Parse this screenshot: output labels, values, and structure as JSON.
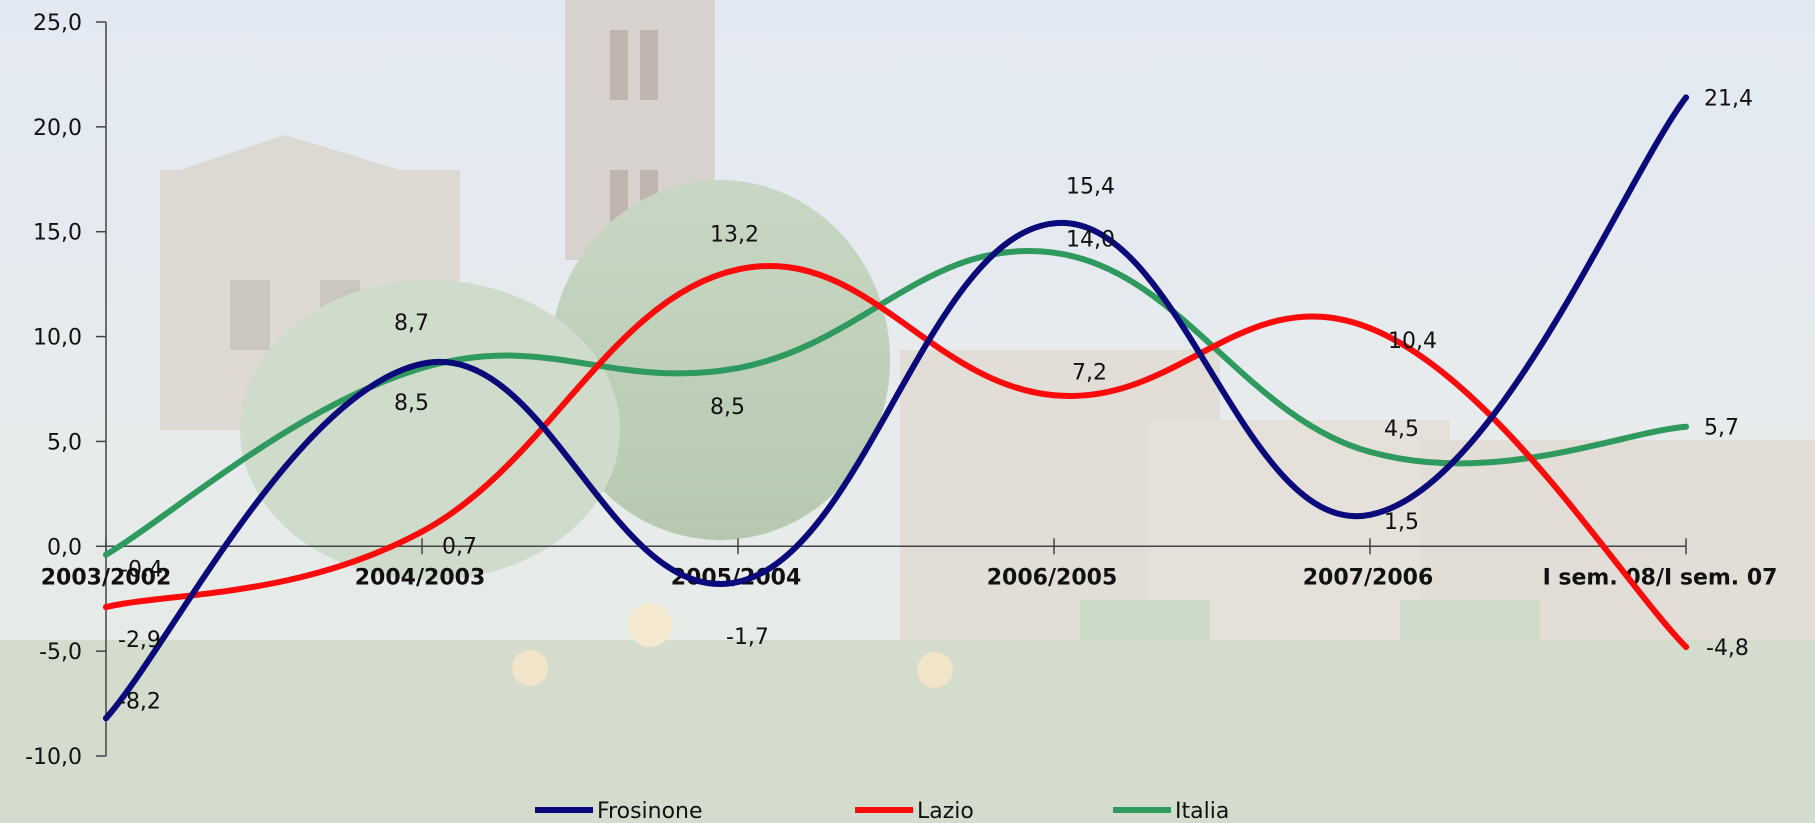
{
  "colors": {
    "Frosinone": "#0a0a7a",
    "Lazio": "#ff0a0a",
    "Italia": "#2e9a5e",
    "axis": "#444444"
  },
  "chart_data": {
    "type": "line",
    "title": "",
    "xlabel": "",
    "ylabel": "",
    "ylim": [
      -10,
      25
    ],
    "yticks": [
      "-10,0",
      "-5,0",
      "0,0",
      "5,0",
      "10,0",
      "15,0",
      "20,0",
      "25,0"
    ],
    "ytick_values": [
      -10,
      -5,
      0,
      5,
      10,
      15,
      20,
      25
    ],
    "categories": [
      "2003/2002",
      "2004/2003",
      "2005/2004",
      "2006/2005",
      "2007/2006",
      "I sem. 08/I sem. 07"
    ],
    "series": [
      {
        "name": "Frosinone",
        "values": [
          -8.2,
          8.7,
          -1.7,
          15.4,
          1.5,
          21.4
        ],
        "labels": [
          "-8,2",
          "8,7",
          "-1,7",
          "15,4",
          "1,5",
          "21,4"
        ]
      },
      {
        "name": "Lazio",
        "values": [
          -2.9,
          0.7,
          13.2,
          7.2,
          10.4,
          -4.8
        ],
        "labels": [
          "-2,9",
          "0,7",
          "13,2",
          "7,2",
          "10,4",
          "-4,8"
        ]
      },
      {
        "name": "Italia",
        "values": [
          -0.4,
          8.5,
          8.5,
          14.0,
          4.5,
          5.7
        ],
        "labels": [
          "-0,4",
          "8,5",
          "8,5",
          "14,0",
          "4,5",
          "5,7"
        ]
      }
    ],
    "legend": {
      "position": "bottom"
    },
    "grid": false,
    "smooth": true
  }
}
